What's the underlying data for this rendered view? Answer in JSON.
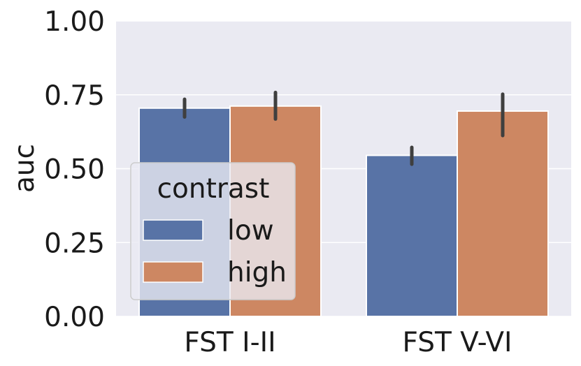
{
  "chart_data": {
    "type": "bar",
    "categories": [
      "FST I-II",
      "FST V-VI"
    ],
    "series": [
      {
        "name": "low",
        "color": "#5873a6",
        "values": [
          0.705,
          0.545
        ],
        "ci": [
          [
            0.675,
            0.735
          ],
          [
            0.515,
            0.572
          ]
        ]
      },
      {
        "name": "high",
        "color": "#cd8762",
        "values": [
          0.712,
          0.695
        ],
        "ci": [
          [
            0.668,
            0.758
          ],
          [
            0.612,
            0.752
          ]
        ]
      }
    ],
    "xlabel": "",
    "ylabel": "auc",
    "ylim": [
      0,
      1.0
    ],
    "yticks": [
      "0.00",
      "0.25",
      "0.50",
      "0.75",
      "1.00"
    ],
    "grid": true,
    "legend": {
      "title": "contrast",
      "placement": "center-left"
    },
    "colors": {
      "background": "#eaeaf2",
      "grid": "#ffffff",
      "errorbar": "#3f3f3f"
    }
  }
}
